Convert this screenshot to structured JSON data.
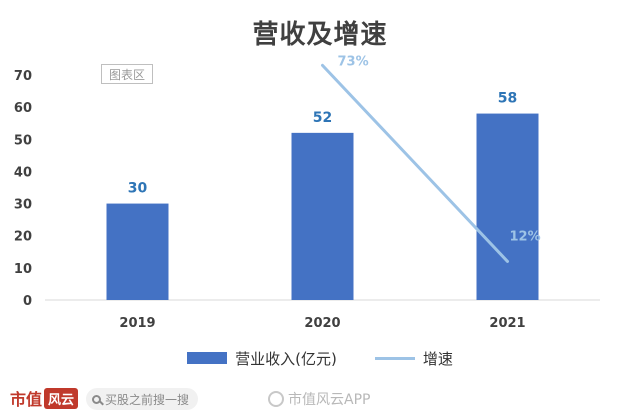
{
  "chart_data": {
    "type": "bar",
    "title": "营收及增速",
    "categories": [
      "2019",
      "2020",
      "2021"
    ],
    "series": [
      {
        "name": "营业收入(亿元)",
        "type": "bar",
        "values": [
          30,
          52,
          58
        ],
        "labels": [
          "30",
          "52",
          "58"
        ],
        "color": "#4472c4"
      },
      {
        "name": "增速",
        "type": "line",
        "values": [
          null,
          73,
          12
        ],
        "labels": [
          "",
          "73%",
          "12%"
        ],
        "color": "#9dc3e6"
      }
    ],
    "ylim": [
      0,
      70
    ],
    "yticks": [
      "0",
      "10",
      "20",
      "30",
      "40",
      "50",
      "60",
      "70"
    ],
    "grid": false,
    "legend": "bottom"
  },
  "chart_area_tag": "图表区",
  "brand": {
    "name": "市值",
    "badge": "风云"
  },
  "search": {
    "placeholder": "买股之前搜一搜"
  },
  "watermark": {
    "text": "市值风云APP"
  }
}
